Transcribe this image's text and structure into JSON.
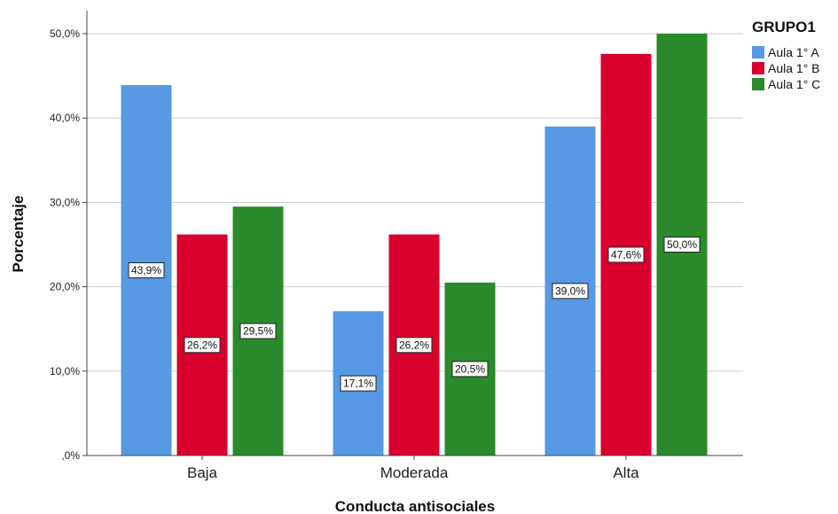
{
  "chart_data": {
    "type": "bar",
    "ylabel": "Porcentaje",
    "xlabel": "Conducta antisociales",
    "ylim": [
      0,
      50
    ],
    "yticks": [
      {
        "value": 0,
        "label": ",0%"
      },
      {
        "value": 10,
        "label": "10,0%"
      },
      {
        "value": 20,
        "label": "20,0%"
      },
      {
        "value": 30,
        "label": "30,0%"
      },
      {
        "value": 40,
        "label": "40,0%"
      },
      {
        "value": 50,
        "label": "50,0%"
      }
    ],
    "grid": true,
    "categories": [
      "Baja",
      "Moderada",
      "Alta"
    ],
    "legend": {
      "title": "GRUPO1",
      "position": "top-right"
    },
    "series": [
      {
        "name": "Aula 1° A",
        "color": "#5799e4",
        "values": [
          43.9,
          17.1,
          39.0
        ],
        "labels": [
          "43,9%",
          "17,1%",
          "39,0%"
        ]
      },
      {
        "name": "Aula 1° B",
        "color": "#d9002e",
        "values": [
          26.2,
          26.2,
          47.6
        ],
        "labels": [
          "26,2%",
          "26,2%",
          "47,6%"
        ]
      },
      {
        "name": "Aula 1° C",
        "color": "#2b8a2b",
        "values": [
          29.5,
          20.5,
          50.0
        ],
        "labels": [
          "29,5%",
          "20,5%",
          "50,0%"
        ]
      }
    ]
  }
}
